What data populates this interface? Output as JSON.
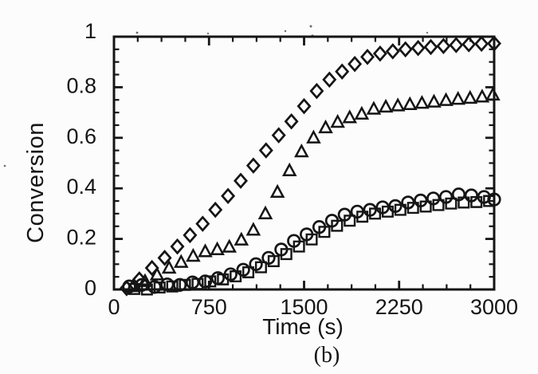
{
  "figure": {
    "subplot_label": "(b)"
  },
  "chart_data": {
    "type": "scatter",
    "title": "",
    "xlabel": "Time (s)",
    "ylabel": "Conversion",
    "xlim": [
      0,
      3000
    ],
    "ylim": [
      0,
      1
    ],
    "x_ticks": [
      0,
      750,
      1500,
      2250,
      3000
    ],
    "x_tick_labels": [
      "0",
      "750",
      "1500",
      "2250",
      "3000"
    ],
    "x_minor_step": 187.5,
    "y_ticks": [
      0,
      0.2,
      0.4,
      0.6,
      0.8,
      1
    ],
    "y_tick_labels": [
      "0",
      "0.2",
      "0.4",
      "0.6",
      "0.8",
      "1"
    ],
    "y_minor_step": 0.05,
    "grid": false,
    "legend_position": "none",
    "ink_color": "#151515",
    "marker_style": "open",
    "series": [
      {
        "name": "squares",
        "marker": "square",
        "points": [
          [
            160,
            0.002
          ],
          [
            260,
            0.0
          ],
          [
            360,
            0.008
          ],
          [
            460,
            0.012
          ],
          [
            560,
            0.018
          ],
          [
            660,
            0.022
          ],
          [
            760,
            0.032
          ],
          [
            860,
            0.04
          ],
          [
            960,
            0.052
          ],
          [
            1060,
            0.068
          ],
          [
            1160,
            0.088
          ],
          [
            1260,
            0.112
          ],
          [
            1360,
            0.14
          ],
          [
            1460,
            0.17
          ],
          [
            1560,
            0.198
          ],
          [
            1660,
            0.228
          ],
          [
            1760,
            0.252
          ],
          [
            1860,
            0.272
          ],
          [
            1960,
            0.288
          ],
          [
            2060,
            0.3
          ],
          [
            2160,
            0.308
          ],
          [
            2260,
            0.315
          ],
          [
            2360,
            0.323
          ],
          [
            2460,
            0.328
          ],
          [
            2560,
            0.334
          ],
          [
            2660,
            0.34
          ],
          [
            2760,
            0.344
          ],
          [
            2860,
            0.346
          ],
          [
            2960,
            0.35
          ]
        ]
      },
      {
        "name": "circles",
        "marker": "circle",
        "points": [
          [
            120,
            0.012
          ],
          [
            220,
            0.018
          ],
          [
            320,
            0.01
          ],
          [
            420,
            0.02
          ],
          [
            520,
            0.018
          ],
          [
            620,
            0.028
          ],
          [
            720,
            0.032
          ],
          [
            820,
            0.045
          ],
          [
            920,
            0.06
          ],
          [
            1020,
            0.078
          ],
          [
            1120,
            0.1
          ],
          [
            1220,
            0.125
          ],
          [
            1320,
            0.158
          ],
          [
            1420,
            0.192
          ],
          [
            1520,
            0.218
          ],
          [
            1620,
            0.247
          ],
          [
            1720,
            0.272
          ],
          [
            1820,
            0.296
          ],
          [
            1920,
            0.308
          ],
          [
            2020,
            0.315
          ],
          [
            2120,
            0.325
          ],
          [
            2220,
            0.33
          ],
          [
            2320,
            0.344
          ],
          [
            2420,
            0.352
          ],
          [
            2520,
            0.36
          ],
          [
            2620,
            0.366
          ],
          [
            2720,
            0.376
          ],
          [
            2820,
            0.372
          ],
          [
            2920,
            0.366
          ],
          [
            3000,
            0.356
          ]
        ]
      },
      {
        "name": "triangles",
        "marker": "triangle",
        "points": [
          [
            150,
            0.012
          ],
          [
            245,
            0.032
          ],
          [
            340,
            0.058
          ],
          [
            435,
            0.085
          ],
          [
            530,
            0.108
          ],
          [
            625,
            0.132
          ],
          [
            720,
            0.15
          ],
          [
            815,
            0.158
          ],
          [
            910,
            0.168
          ],
          [
            1005,
            0.196
          ],
          [
            1100,
            0.235
          ],
          [
            1195,
            0.3
          ],
          [
            1290,
            0.385
          ],
          [
            1385,
            0.47
          ],
          [
            1480,
            0.545
          ],
          [
            1575,
            0.6
          ],
          [
            1670,
            0.64
          ],
          [
            1765,
            0.662
          ],
          [
            1860,
            0.68
          ],
          [
            1955,
            0.694
          ],
          [
            2050,
            0.714
          ],
          [
            2145,
            0.722
          ],
          [
            2240,
            0.727
          ],
          [
            2335,
            0.732
          ],
          [
            2430,
            0.737
          ],
          [
            2525,
            0.742
          ],
          [
            2620,
            0.748
          ],
          [
            2715,
            0.753
          ],
          [
            2810,
            0.757
          ],
          [
            2905,
            0.762
          ],
          [
            2990,
            0.77
          ]
        ]
      },
      {
        "name": "diamonds",
        "marker": "diamond",
        "points": [
          [
            100,
            0.005
          ],
          [
            200,
            0.04
          ],
          [
            300,
            0.085
          ],
          [
            400,
            0.125
          ],
          [
            500,
            0.17
          ],
          [
            600,
            0.215
          ],
          [
            700,
            0.26
          ],
          [
            800,
            0.315
          ],
          [
            900,
            0.37
          ],
          [
            1000,
            0.43
          ],
          [
            1100,
            0.49
          ],
          [
            1200,
            0.55
          ],
          [
            1300,
            0.61
          ],
          [
            1400,
            0.665
          ],
          [
            1500,
            0.725
          ],
          [
            1600,
            0.785
          ],
          [
            1700,
            0.83
          ],
          [
            1800,
            0.862
          ],
          [
            1900,
            0.892
          ],
          [
            2000,
            0.92
          ],
          [
            2100,
            0.933
          ],
          [
            2200,
            0.942
          ],
          [
            2300,
            0.95
          ],
          [
            2400,
            0.955
          ],
          [
            2500,
            0.959
          ],
          [
            2600,
            0.963
          ],
          [
            2700,
            0.967
          ],
          [
            2800,
            0.97
          ],
          [
            2900,
            0.972
          ],
          [
            3000,
            0.973
          ]
        ]
      }
    ]
  }
}
